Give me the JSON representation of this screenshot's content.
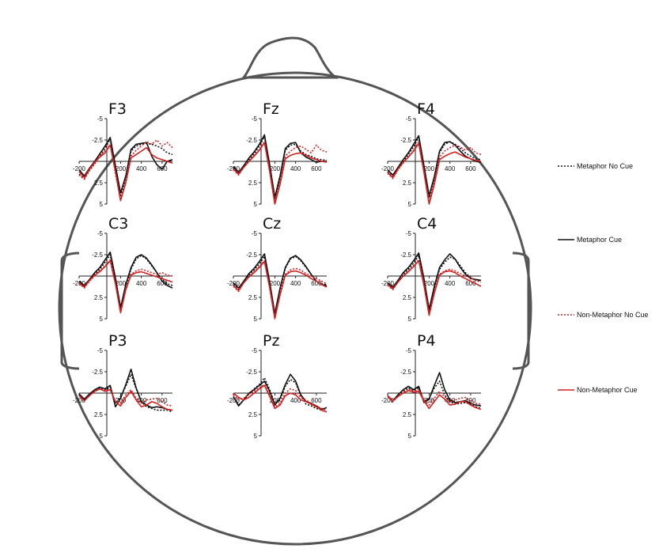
{
  "chart_data": {
    "type": "line",
    "layout": "head topography",
    "y_inverted": true,
    "x_ticks": [
      "-200",
      "200",
      "400",
      "600"
    ],
    "y_ticks": [
      "-5",
      "-2.5",
      "2.5",
      "5"
    ],
    "xlim": [
      -200,
      700
    ],
    "ylim": [
      -5,
      5
    ],
    "series": [
      {
        "name": "Metaphor No Cue",
        "color": "#111111",
        "dash": "dotted"
      },
      {
        "name": "Metaphor Cue",
        "color": "#111111",
        "dash": "solid"
      },
      {
        "name": "Non-Metaphor No Cue",
        "color": "#d42020",
        "dash": "dotted"
      },
      {
        "name": "Non-Metaphor Cue",
        "color": "#d42020",
        "dash": "solid"
      }
    ],
    "x": [
      -200,
      -150,
      -100,
      -50,
      0,
      50,
      100,
      150,
      200,
      250,
      300,
      350,
      400,
      450,
      500,
      550,
      600,
      650,
      700
    ],
    "electrodes": [
      {
        "label": "F3",
        "values": [
          [
            1.5,
            2.0,
            1.0,
            0.2,
            -0.6,
            -1.5,
            -2.6,
            1.0,
            4.0,
            2.0,
            -1.2,
            -1.8,
            -2.0,
            -2.1,
            -2.0,
            -1.8,
            -1.5,
            -1.0,
            -0.8
          ],
          [
            1.0,
            1.7,
            0.8,
            0.0,
            -0.9,
            -1.8,
            -2.8,
            0.5,
            3.7,
            1.7,
            -1.4,
            -2.0,
            -2.1,
            -2.2,
            -0.6,
            0.4,
            0.9,
            0.0,
            -0.2
          ],
          [
            1.6,
            2.1,
            1.1,
            0.3,
            -0.7,
            -1.2,
            -2.0,
            1.4,
            4.5,
            2.4,
            -0.6,
            -1.3,
            -1.8,
            -2.3,
            -2.0,
            -2.5,
            -1.8,
            -2.2,
            -1.6
          ],
          [
            1.2,
            1.9,
            0.9,
            0.1,
            -0.5,
            -1.0,
            -1.9,
            1.2,
            4.6,
            2.5,
            -0.4,
            -0.8,
            -1.2,
            -1.6,
            -0.8,
            -0.4,
            -0.2,
            0.0,
            0.2
          ]
        ]
      },
      {
        "label": "Fz",
        "values": [
          [
            0.8,
            1.5,
            0.6,
            -0.2,
            -0.9,
            -1.8,
            -2.9,
            0.8,
            4.4,
            2.0,
            -1.3,
            -1.9,
            -2.0,
            -1.2,
            -0.8,
            -0.6,
            -0.3,
            -0.2,
            -0.1
          ],
          [
            0.6,
            1.3,
            0.5,
            -0.4,
            -1.1,
            -2.0,
            -3.1,
            0.4,
            4.2,
            1.7,
            -1.5,
            -2.1,
            -2.2,
            -1.0,
            -0.5,
            -0.2,
            0.1,
            0.0,
            0.0
          ],
          [
            1.0,
            1.6,
            0.7,
            0.0,
            -0.7,
            -1.4,
            -2.3,
            1.0,
            4.7,
            2.4,
            -0.6,
            -1.2,
            -1.6,
            -1.8,
            -1.4,
            -1.0,
            -1.9,
            -1.3,
            -1.1
          ],
          [
            0.9,
            1.5,
            0.7,
            0.0,
            -0.6,
            -1.3,
            -2.2,
            1.2,
            5.0,
            2.7,
            -0.3,
            -0.7,
            -0.9,
            -1.0,
            -0.7,
            -0.4,
            -0.2,
            0.0,
            0.1
          ]
        ]
      },
      {
        "label": "F4",
        "values": [
          [
            1.2,
            1.8,
            0.8,
            0.0,
            -0.8,
            -1.7,
            -2.8,
            0.8,
            4.3,
            2.0,
            -1.0,
            -2.0,
            -2.3,
            -2.0,
            -1.5,
            -1.0,
            -0.6,
            -0.3,
            -0.2
          ],
          [
            1.0,
            1.6,
            0.7,
            -0.2,
            -1.0,
            -2.0,
            -3.0,
            0.5,
            4.0,
            1.8,
            -1.2,
            -2.2,
            -2.3,
            -1.9,
            -1.2,
            -0.6,
            -0.3,
            0.0,
            0.1
          ],
          [
            1.4,
            2.0,
            1.0,
            0.2,
            -0.5,
            -1.3,
            -2.3,
            1.1,
            4.8,
            2.5,
            -0.5,
            -1.2,
            -1.6,
            -1.9,
            -1.7,
            -1.3,
            -1.6,
            -1.0,
            -0.8
          ],
          [
            1.3,
            1.9,
            0.9,
            0.1,
            -0.5,
            -1.2,
            -2.1,
            1.3,
            5.0,
            2.7,
            -0.2,
            -0.6,
            -0.9,
            -1.1,
            -0.8,
            -0.5,
            -0.3,
            -0.1,
            0.0
          ]
        ]
      },
      {
        "label": "C3",
        "values": [
          [
            0.8,
            1.3,
            0.5,
            -0.2,
            -0.8,
            -1.6,
            -2.5,
            0.5,
            3.9,
            1.2,
            -0.8,
            -2.0,
            -2.4,
            -2.0,
            -1.2,
            -0.4,
            0.4,
            0.9,
            1.1
          ],
          [
            0.6,
            1.1,
            0.4,
            -0.4,
            -1.0,
            -1.9,
            -2.8,
            0.2,
            3.7,
            1.0,
            -1.0,
            -2.2,
            -2.5,
            -2.1,
            -1.3,
            -0.4,
            0.6,
            1.1,
            1.4
          ],
          [
            0.9,
            1.4,
            0.6,
            0.0,
            -0.6,
            -1.2,
            -1.9,
            0.8,
            4.2,
            1.5,
            -0.2,
            -0.6,
            -0.8,
            -0.6,
            -0.4,
            -0.2,
            -0.4,
            -0.1,
            0.0
          ],
          [
            0.8,
            1.3,
            0.5,
            -0.1,
            -0.5,
            -1.1,
            -1.8,
            0.9,
            4.3,
            1.6,
            -0.1,
            -0.4,
            -0.5,
            -0.3,
            -0.1,
            0.1,
            0.3,
            0.5,
            0.7
          ]
        ]
      },
      {
        "label": "Cz",
        "values": [
          [
            1.0,
            1.6,
            0.7,
            -0.1,
            -0.7,
            -1.4,
            -2.3,
            1.0,
            4.6,
            1.6,
            -0.9,
            -2.0,
            -2.3,
            -1.8,
            -1.0,
            -0.2,
            0.6,
            0.9,
            1.0
          ],
          [
            0.8,
            1.4,
            0.6,
            -0.3,
            -0.9,
            -1.7,
            -2.6,
            0.7,
            4.4,
            1.4,
            -1.0,
            -2.1,
            -2.4,
            -1.9,
            -1.1,
            -0.2,
            0.6,
            1.0,
            1.1
          ],
          [
            1.2,
            1.8,
            0.8,
            0.1,
            -0.5,
            -1.1,
            -1.8,
            1.2,
            4.8,
            2.0,
            -0.2,
            -0.7,
            -0.9,
            -0.7,
            -0.3,
            0.0,
            0.3,
            0.6,
            0.9
          ],
          [
            1.1,
            1.7,
            0.8,
            0.1,
            -0.4,
            -1.0,
            -1.7,
            1.4,
            5.0,
            2.2,
            -0.1,
            -0.5,
            -0.6,
            -0.4,
            -0.1,
            0.3,
            0.6,
            1.0,
            1.3
          ]
        ]
      },
      {
        "label": "C4",
        "values": [
          [
            1.0,
            1.5,
            0.6,
            -0.2,
            -0.8,
            -1.5,
            -2.4,
            0.6,
            4.1,
            1.4,
            -0.8,
            -1.6,
            -2.2,
            -2.0,
            -1.2,
            -0.4,
            0.2,
            0.5,
            0.6
          ],
          [
            0.8,
            1.3,
            0.5,
            -0.4,
            -1.0,
            -1.8,
            -2.7,
            0.3,
            3.9,
            1.2,
            -1.0,
            -1.9,
            -2.6,
            -2.0,
            -1.0,
            -0.2,
            0.3,
            0.4,
            0.5
          ],
          [
            1.1,
            1.6,
            0.7,
            0.0,
            -0.6,
            -1.2,
            -1.9,
            0.9,
            4.4,
            1.8,
            -0.2,
            -0.6,
            -0.8,
            -0.6,
            -0.3,
            0.0,
            0.2,
            0.5,
            0.7
          ],
          [
            1.0,
            1.5,
            0.7,
            0.0,
            -0.5,
            -1.1,
            -1.8,
            1.1,
            4.6,
            2.0,
            -0.1,
            -0.5,
            -0.6,
            -0.4,
            0.0,
            0.3,
            0.6,
            0.9,
            1.2
          ]
        ]
      },
      {
        "label": "P3",
        "values": [
          [
            0.2,
            0.8,
            0.2,
            -0.3,
            -0.6,
            -0.4,
            -0.7,
            1.2,
            0.4,
            -0.8,
            -2.2,
            -0.5,
            1.0,
            1.6,
            1.8,
            2.0,
            2.0,
            2.0,
            2.2
          ],
          [
            0.1,
            0.7,
            0.1,
            -0.4,
            -0.7,
            -0.5,
            -0.9,
            1.6,
            0.6,
            -1.0,
            -2.8,
            -0.6,
            1.0,
            1.4,
            1.7,
            1.6,
            1.7,
            1.9,
            2.0
          ],
          [
            0.3,
            0.9,
            0.3,
            -0.2,
            -0.5,
            -0.3,
            -0.5,
            1.0,
            1.2,
            0.2,
            -0.4,
            0.6,
            1.2,
            0.8,
            0.7,
            0.6,
            1.0,
            1.4,
            1.5
          ],
          [
            0.3,
            0.9,
            0.3,
            -0.2,
            -0.5,
            -0.2,
            -0.4,
            1.0,
            1.5,
            0.5,
            -0.2,
            0.8,
            1.6,
            1.4,
            1.0,
            1.2,
            1.6,
            1.9,
            2.0
          ]
        ]
      },
      {
        "label": "Pz",
        "values": [
          [
            0.5,
            1.4,
            0.8,
            0.1,
            -0.5,
            -1.0,
            -1.8,
            -0.4,
            1.2,
            0.8,
            -0.8,
            -1.6,
            -1.2,
            0.3,
            1.3,
            1.5,
            1.8,
            2.0,
            2.2
          ],
          [
            0.4,
            1.5,
            0.8,
            0.0,
            -0.4,
            -0.9,
            -1.4,
            -0.2,
            1.4,
            0.6,
            -1.0,
            -2.2,
            -1.4,
            0.2,
            1.0,
            1.2,
            1.5,
            1.9,
            1.7
          ],
          [
            0.2,
            0.8,
            0.6,
            0.1,
            -0.2,
            -0.6,
            -1.0,
            0.2,
            1.6,
            1.2,
            0.0,
            -0.5,
            -0.3,
            0.5,
            0.8,
            1.2,
            1.5,
            1.8,
            2.0
          ],
          [
            0.0,
            0.5,
            0.8,
            0.5,
            0.0,
            -0.5,
            -0.9,
            0.4,
            1.8,
            1.4,
            0.3,
            0.0,
            0.2,
            0.8,
            1.0,
            1.3,
            1.6,
            2.0,
            2.2
          ]
        ]
      },
      {
        "label": "P4",
        "values": [
          [
            0.4,
            1.0,
            0.3,
            -0.2,
            -0.6,
            -0.3,
            -0.6,
            0.9,
            0.6,
            -0.6,
            -1.4,
            0.2,
            1.0,
            1.3,
            1.2,
            1.1,
            1.3,
            1.6,
            1.8
          ],
          [
            0.3,
            0.9,
            0.2,
            -0.4,
            -0.8,
            -0.4,
            -0.8,
            1.1,
            0.7,
            -0.9,
            -2.4,
            -0.4,
            0.8,
            1.1,
            1.0,
            0.9,
            1.2,
            1.4,
            1.5
          ],
          [
            0.4,
            1.0,
            0.4,
            -0.1,
            -0.5,
            -0.2,
            -0.4,
            0.8,
            1.4,
            0.6,
            -0.2,
            0.4,
            1.0,
            0.8,
            0.6,
            0.5,
            0.9,
            1.2,
            1.3
          ],
          [
            0.3,
            0.9,
            0.4,
            0.0,
            -0.3,
            -0.1,
            -0.2,
            0.9,
            1.8,
            1.0,
            0.2,
            0.7,
            1.4,
            1.3,
            1.0,
            1.0,
            1.4,
            1.7,
            1.9
          ]
        ]
      }
    ]
  }
}
